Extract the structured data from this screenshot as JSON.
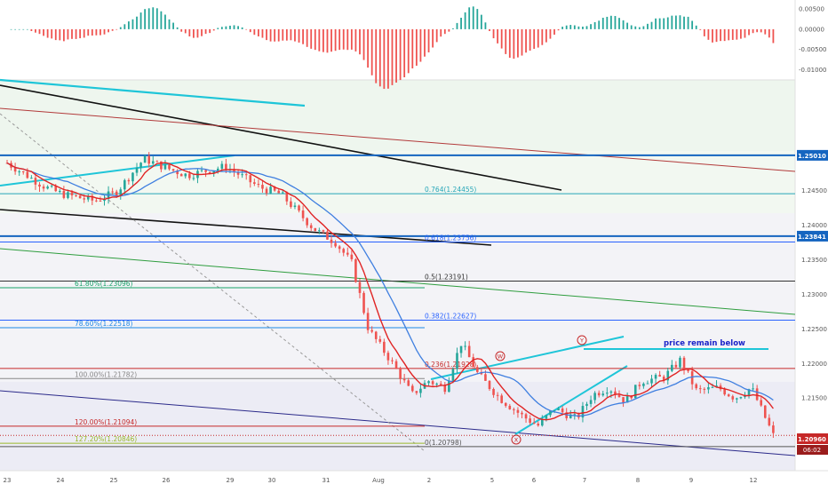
{
  "chart_data": {
    "type": "line",
    "instrument_price_current": "1.20960",
    "countdown": "06:02",
    "x_tick_labels": [
      "23",
      "24",
      "25",
      "26",
      "29",
      "30",
      "31",
      "Aug",
      "2",
      "5",
      "6",
      "7",
      "8",
      "9",
      "12"
    ],
    "price_ylim": [
      1.2045,
      1.261
    ],
    "price_ticks": [
      "1.24500",
      "1.24000",
      "1.23500",
      "1.23000",
      "1.22500",
      "1.22000",
      "1.21500"
    ],
    "oscillator_ylim": [
      -0.0125,
      0.0072
    ],
    "oscillator_ticks": [
      "0.00500",
      "0.00000",
      "-0.00500",
      "-0.01000"
    ],
    "key_levels": [
      {
        "label": "1.25010",
        "price": 1.2501,
        "color": "#1565c0"
      },
      {
        "label": "1.23841",
        "price": 1.23841,
        "color": "#1565c0"
      }
    ],
    "fib_retracement": [
      {
        "label": "0.764(1.24455)",
        "price": 1.24455,
        "color": "#26a6b8"
      },
      {
        "label": "0.618(1.23756)",
        "price": 1.23756,
        "color": "#2962ff"
      },
      {
        "label": "0.5(1.23191)",
        "price": 1.23191,
        "color": "#333333"
      },
      {
        "label": "0.382(1.22627)",
        "price": 1.22627,
        "color": "#2962ff"
      },
      {
        "label": "0.236(1.21928)",
        "price": 1.21928,
        "color": "#c62828"
      },
      {
        "label": "0(1.20798)",
        "price": 1.20798,
        "color": "#555555"
      }
    ],
    "fib_extension": [
      {
        "label": "61.80%(1.23096)",
        "price": 1.23096,
        "color": "#1aa36a"
      },
      {
        "label": "78.60%(1.22518)",
        "price": 1.22518,
        "color": "#1e88e5"
      },
      {
        "label": "100.00%(1.21782)",
        "price": 1.21782,
        "color": "#888888"
      },
      {
        "label": "120.00%(1.21094)",
        "price": 1.21094,
        "color": "#c62828"
      },
      {
        "label": "127.20%(1.20846)",
        "price": 1.20846,
        "color": "#9ab82a"
      }
    ],
    "annotations": {
      "note": "price remain below",
      "wave_labels": [
        "W",
        "X",
        "Y"
      ]
    },
    "close_series": {
      "x": [
        0,
        0.3,
        0.7,
        1.0,
        1.3,
        1.6,
        2.0,
        2.5,
        3.0,
        3.3,
        3.6,
        4.0,
        4.3,
        4.6,
        5.0,
        5.3,
        5.6,
        6.0,
        6.3,
        6.6,
        7.0,
        7.4,
        7.7,
        8.0,
        8.3,
        8.6,
        9.0,
        9.4,
        9.7,
        10.0,
        10.4,
        10.7,
        11.0,
        11.3,
        11.6,
        12.0,
        12.3,
        12.6,
        13.0,
        13.3,
        13.6,
        14.0
      ],
      "y": [
        1.249,
        1.2475,
        1.2455,
        1.2445,
        1.244,
        1.2435,
        1.2448,
        1.2496,
        1.248,
        1.2472,
        1.2478,
        1.2485,
        1.247,
        1.2455,
        1.2445,
        1.242,
        1.2395,
        1.2375,
        1.2345,
        1.225,
        1.2205,
        1.2155,
        1.2175,
        1.2165,
        1.223,
        1.2185,
        1.215,
        1.2125,
        1.211,
        1.2135,
        1.212,
        1.2155,
        1.2165,
        1.2145,
        1.2175,
        1.218,
        1.2205,
        1.216,
        1.2165,
        1.215,
        1.2165,
        1.2096
      ]
    }
  }
}
